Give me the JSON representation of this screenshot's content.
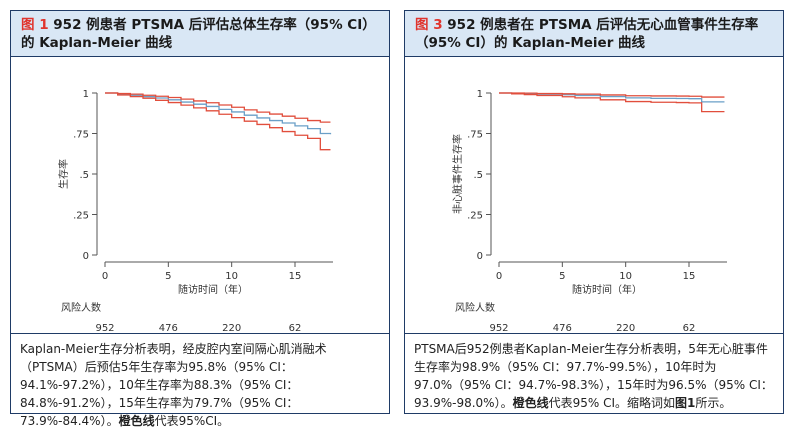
{
  "panels": [
    {
      "title_label": "图 1",
      "title_text": " 952 例患者 PTSMA 后评估总体生存率（95% CI）的 Kaplan-Meier 曲线",
      "caption_text": "Kaplan-Meier生存分析表明，经皮腔内室间隔心肌消融术（PTSMA）后预估5年生存率为95.8%（95% CI：94.1%-97.2%），10年生存率为88.3%（95% CI：84.8%-91.2%），15年生存率为79.7%（95% CI：73.9%-84.4%）。",
      "caption_bold": "橙色线",
      "caption_tail": "代表95%CI。"
    },
    {
      "title_label": "图 3",
      "title_text": " 952 例患者在 PTSMA 后评估无心血管事件生存率（95% CI）的 Kaplan-Meier 曲线",
      "caption_text": "PTSMA后952例患者Kaplan-Meier生存分析表明，5年无心脏事件生存率为98.9%（95% CI：97.7%-99.5%），10年时为97.0%（95% CI：94.7%-98.3%），15年时为96.5%（95% CI：93.9%-98.0%）。",
      "caption_bold": "橙色线",
      "caption_tail": "代表95% CI。缩略词如",
      "caption_bold2": "图1",
      "caption_tail2": "所示。"
    }
  ],
  "colors": {
    "estimate": "#6a9fc7",
    "ci": "#e14e3c",
    "axis": "#555555",
    "title_bg": "#d9e7f5",
    "label_red": "#e0342d",
    "border": "#1f3b66"
  },
  "chart_data": [
    {
      "type": "line",
      "title": "",
      "xlabel": "随访时间（年）",
      "ylabel": "生存率",
      "xlim": [
        0,
        18
      ],
      "ylim": [
        0,
        1
      ],
      "x_ticks": [
        0,
        5,
        10,
        15
      ],
      "y_ticks": [
        0,
        0.25,
        0.5,
        0.75,
        1
      ],
      "y_tick_labels": [
        "0",
        ".25",
        ".5",
        ".75",
        "1"
      ],
      "risk_title": "风险人数",
      "risk_x": [
        0,
        5,
        10,
        15
      ],
      "risk_values": [
        "952",
        "476",
        "220",
        "62"
      ],
      "series": [
        {
          "role": "estimate",
          "x": [
            0,
            1,
            2,
            3,
            4,
            5,
            6,
            7,
            8,
            9,
            10,
            11,
            12,
            13,
            14,
            15,
            16,
            17,
            17.8
          ],
          "y": [
            1,
            0.993,
            0.986,
            0.978,
            0.969,
            0.958,
            0.944,
            0.931,
            0.917,
            0.899,
            0.883,
            0.863,
            0.846,
            0.83,
            0.815,
            0.797,
            0.78,
            0.75,
            0.745
          ]
        },
        {
          "role": "ci_upper",
          "x": [
            0,
            1,
            2,
            3,
            4,
            5,
            6,
            7,
            8,
            9,
            10,
            11,
            12,
            13,
            14,
            15,
            16,
            17,
            17.8
          ],
          "y": [
            1,
            0.997,
            0.993,
            0.986,
            0.98,
            0.972,
            0.962,
            0.951,
            0.94,
            0.926,
            0.912,
            0.896,
            0.882,
            0.87,
            0.857,
            0.844,
            0.83,
            0.82,
            0.82
          ]
        },
        {
          "role": "ci_lower",
          "x": [
            0,
            1,
            2,
            3,
            4,
            5,
            6,
            7,
            8,
            9,
            10,
            11,
            12,
            13,
            14,
            15,
            16,
            17,
            17.8
          ],
          "y": [
            1,
            0.988,
            0.978,
            0.968,
            0.955,
            0.941,
            0.925,
            0.908,
            0.89,
            0.869,
            0.848,
            0.826,
            0.806,
            0.786,
            0.762,
            0.739,
            0.72,
            0.65,
            0.65
          ]
        }
      ]
    },
    {
      "type": "line",
      "title": "",
      "xlabel": "随访时间（年）",
      "ylabel": "非心脏事件生存率",
      "xlim": [
        0,
        18
      ],
      "ylim": [
        0,
        1
      ],
      "x_ticks": [
        0,
        5,
        10,
        15
      ],
      "y_ticks": [
        0,
        0.25,
        0.5,
        0.75,
        1
      ],
      "y_tick_labels": [
        "0",
        ".25",
        ".5",
        ".75",
        "1"
      ],
      "risk_title": "风险人数",
      "risk_x": [
        0,
        5,
        10,
        15
      ],
      "risk_values": [
        "952",
        "476",
        "220",
        "62"
      ],
      "series": [
        {
          "role": "estimate",
          "x": [
            0,
            1,
            2,
            3,
            5,
            6,
            8,
            10,
            12,
            14,
            15,
            15.5,
            16,
            17.8
          ],
          "y": [
            1,
            0.999,
            0.996,
            0.993,
            0.989,
            0.985,
            0.978,
            0.97,
            0.967,
            0.966,
            0.965,
            0.965,
            0.945,
            0.945
          ]
        },
        {
          "role": "ci_upper",
          "x": [
            0,
            1,
            2,
            3,
            5,
            6,
            8,
            10,
            12,
            14,
            15,
            15.5,
            16,
            17.8
          ],
          "y": [
            1,
            1,
            0.999,
            0.997,
            0.995,
            0.993,
            0.988,
            0.983,
            0.982,
            0.981,
            0.98,
            0.98,
            0.975,
            0.975
          ]
        },
        {
          "role": "ci_lower",
          "x": [
            0,
            1,
            2,
            3,
            5,
            6,
            8,
            10,
            12,
            14,
            15,
            15.5,
            16,
            17.8
          ],
          "y": [
            1,
            0.995,
            0.99,
            0.985,
            0.977,
            0.97,
            0.958,
            0.947,
            0.943,
            0.941,
            0.939,
            0.939,
            0.885,
            0.885
          ]
        }
      ]
    }
  ]
}
